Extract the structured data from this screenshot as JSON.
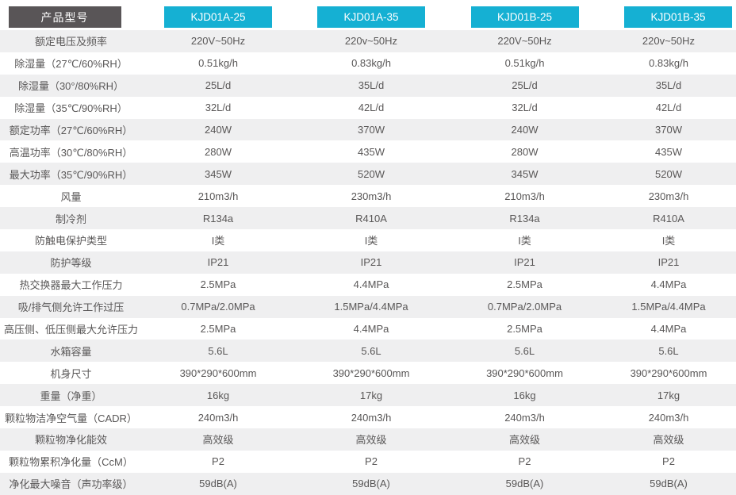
{
  "header": {
    "label_button": "产品型号",
    "models": [
      "KJD01A-25",
      "KJD01A-35",
      "KJD01B-25",
      "KJD01B-35"
    ]
  },
  "rows": [
    {
      "label": "额定电压及频率",
      "values": [
        "220V~50Hz",
        "220v~50Hz",
        "220V~50Hz",
        "220v~50Hz"
      ]
    },
    {
      "label": "除湿量（27℃/60%RH）",
      "values": [
        "0.51kg/h",
        "0.83kg/h",
        "0.51kg/h",
        "0.83kg/h"
      ]
    },
    {
      "label": "除湿量（30°/80%RH）",
      "values": [
        "25L/d",
        "35L/d",
        "25L/d",
        "35L/d"
      ]
    },
    {
      "label": "除湿量（35℃/90%RH）",
      "values": [
        "32L/d",
        "42L/d",
        "32L/d",
        "42L/d"
      ]
    },
    {
      "label": "额定功率（27℃/60%RH）",
      "values": [
        "240W",
        "370W",
        "240W",
        "370W"
      ]
    },
    {
      "label": "高温功率（30℃/80%RH）",
      "values": [
        "280W",
        "435W",
        "280W",
        "435W"
      ]
    },
    {
      "label": "最大功率（35℃/90%RH）",
      "values": [
        "345W",
        "520W",
        "345W",
        "520W"
      ]
    },
    {
      "label": "风量",
      "values": [
        "210m3/h",
        "230m3/h",
        "210m3/h",
        "230m3/h"
      ]
    },
    {
      "label": "制冷剂",
      "values": [
        "R134a",
        "R410A",
        "R134a",
        "R410A"
      ]
    },
    {
      "label": "防触电保护类型",
      "values": [
        "I类",
        "I类",
        "I类",
        "I类"
      ]
    },
    {
      "label": "防护等级",
      "values": [
        "IP21",
        "IP21",
        "IP21",
        "IP21"
      ]
    },
    {
      "label": "热交换器最大工作压力",
      "values": [
        "2.5MPa",
        "4.4MPa",
        "2.5MPa",
        "4.4MPa"
      ]
    },
    {
      "label": "吸/排气侧允许工作过压",
      "values": [
        "0.7MPa/2.0MPa",
        "1.5MPa/4.4MPa",
        "0.7MPa/2.0MPa",
        "1.5MPa/4.4MPa"
      ]
    },
    {
      "label": "高压侧、低压侧最大允许压力",
      "values": [
        "2.5MPa",
        "4.4MPa",
        "2.5MPa",
        "4.4MPa"
      ]
    },
    {
      "label": "水箱容量",
      "values": [
        "5.6L",
        "5.6L",
        "5.6L",
        "5.6L"
      ]
    },
    {
      "label": "机身尺寸",
      "values": [
        "390*290*600mm",
        "390*290*600mm",
        "390*290*600mm",
        "390*290*600mm"
      ]
    },
    {
      "label": "重量（净重）",
      "values": [
        "16kg",
        "17kg",
        "16kg",
        "17kg"
      ]
    },
    {
      "label": "颗粒物洁净空气量（CADR）",
      "values": [
        "240m3/h",
        "240m3/h",
        "240m3/h",
        "240m3/h"
      ]
    },
    {
      "label": "颗粒物净化能效",
      "values": [
        "高效级",
        "高效级",
        "高效级",
        "高效级"
      ]
    },
    {
      "label": "颗粒物累积净化量（CcM）",
      "values": [
        "P2",
        "P2",
        "P2",
        "P2"
      ]
    },
    {
      "label": "净化最大噪音（声功率级）",
      "values": [
        "59dB(A)",
        "59dB(A)",
        "59dB(A)",
        "59dB(A)"
      ]
    }
  ],
  "colors": {
    "accent_cyan": "#15b0d3",
    "header_dark": "#595557",
    "stripe_gray": "#efeff0",
    "text_gray": "#595757",
    "button_text": "#ffffff"
  }
}
